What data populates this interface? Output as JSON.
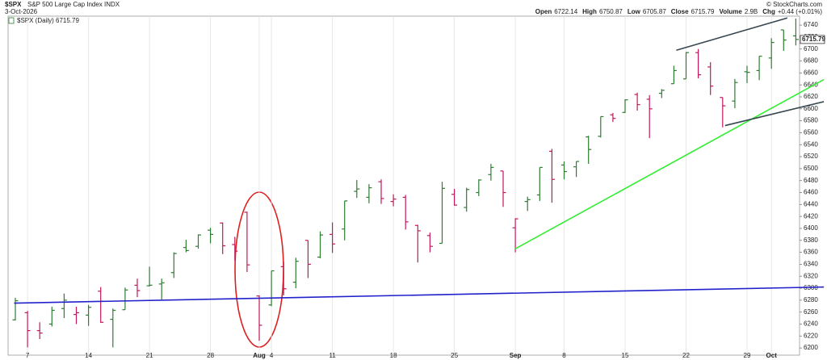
{
  "header": {
    "symbol": "$SPX",
    "name": "S&P 500 Large Cap Index INDX",
    "date": "3-Oct-2026",
    "brand": "© StockCharts.com",
    "quote": [
      {
        "label": "Open",
        "value": "6722.14"
      },
      {
        "label": "High",
        "value": "6750.87"
      },
      {
        "label": "Low",
        "value": "6705.87"
      },
      {
        "label": "Close",
        "value": "6715.79"
      },
      {
        "label": "Volume",
        "value": "2.9B"
      },
      {
        "label": "Chg",
        "value": "+0.44 (+0.01%)"
      }
    ],
    "legend": "$SPX (Daily) 6715.79",
    "last_price": "6715.79"
  },
  "chart_data": {
    "type": "ohlc",
    "categories": [
      null,
      "7",
      null,
      null,
      null,
      null,
      "14",
      null,
      null,
      null,
      null,
      "21",
      null,
      null,
      null,
      null,
      "28",
      null,
      null,
      null,
      "Aug",
      "4",
      null,
      null,
      null,
      null,
      "11",
      null,
      null,
      null,
      null,
      "18",
      null,
      null,
      null,
      null,
      "25",
      null,
      null,
      null,
      null,
      "Sep",
      null,
      null,
      null,
      "8",
      null,
      null,
      null,
      null,
      "15",
      null,
      null,
      null,
      null,
      "22",
      null,
      null,
      null,
      null,
      "29",
      null,
      "Oct",
      null,
      null
    ],
    "ohlc": [
      [
        6247,
        6284,
        6246,
        6279
      ],
      [
        6259,
        6262,
        6201,
        6229
      ],
      [
        6229,
        6243,
        6215,
        6225
      ],
      [
        6240,
        6269,
        6236,
        6263
      ],
      [
        6266,
        6291,
        6250,
        6280
      ],
      [
        6256,
        6269,
        6240,
        6259
      ],
      [
        6255,
        6272,
        6237,
        6268
      ],
      [
        6295,
        6302,
        6242,
        6243
      ],
      [
        6248,
        6266,
        6201,
        6263
      ],
      [
        6264,
        6301,
        6264,
        6297
      ],
      [
        6305,
        6316,
        6285,
        6296
      ],
      [
        6304,
        6336,
        6303,
        6305
      ],
      [
        6307,
        6316,
        6281,
        6309
      ],
      [
        6326,
        6360,
        6317,
        6358
      ],
      [
        6368,
        6381,
        6360,
        6363
      ],
      [
        6370,
        6390,
        6366,
        6389
      ],
      [
        6397,
        6401,
        6375,
        6390
      ],
      [
        6409,
        6410,
        6357,
        6371
      ],
      [
        6373,
        6386,
        6346,
        6362
      ],
      [
        6427,
        6428,
        6327,
        6339
      ],
      [
        6287,
        6288,
        6212,
        6238
      ],
      [
        6272,
        6329,
        6270,
        6329
      ],
      [
        6336,
        6344,
        6288,
        6299
      ],
      [
        6310,
        6351,
        6300,
        6345
      ],
      [
        6380,
        6380,
        6317,
        6340
      ],
      [
        6352,
        6395,
        6350,
        6389
      ],
      [
        6390,
        6410,
        6359,
        6374
      ],
      [
        6399,
        6446,
        6380,
        6446
      ],
      [
        6462,
        6481,
        6451,
        6466
      ],
      [
        6452,
        6474,
        6442,
        6468
      ],
      [
        6478,
        6482,
        6441,
        6450
      ],
      [
        6445,
        6457,
        6437,
        6449
      ],
      [
        6452,
        6456,
        6398,
        6411
      ],
      [
        6405,
        6406,
        6343,
        6396
      ],
      [
        6388,
        6393,
        6360,
        6370
      ],
      [
        6375,
        6478,
        6375,
        6467
      ],
      [
        6457,
        6466,
        6438,
        6439
      ],
      [
        6435,
        6468,
        6428,
        6465
      ],
      [
        6460,
        6482,
        6454,
        6481
      ],
      [
        6490,
        6508,
        6480,
        6502
      ],
      [
        6496,
        6496,
        6436,
        6460
      ],
      [
        6401,
        6417,
        6360,
        6416
      ],
      [
        6445,
        6453,
        6429,
        6448
      ],
      [
        6456,
        6502,
        6446,
        6502
      ],
      [
        6529,
        6533,
        6443,
        6482
      ],
      [
        6506,
        6512,
        6482,
        6495
      ],
      [
        6503,
        6512,
        6486,
        6512
      ],
      [
        6553,
        6555,
        6508,
        6532
      ],
      [
        6554,
        6587,
        6552,
        6587
      ],
      [
        6590,
        6593,
        6578,
        6584
      ],
      [
        6594,
        6616,
        6593,
        6615
      ],
      [
        6624,
        6627,
        6597,
        6607
      ],
      [
        6616,
        6623,
        6551,
        6600
      ],
      [
        6626,
        6633,
        6618,
        6631
      ],
      [
        6642,
        6672,
        6642,
        6664
      ],
      [
        6650,
        6695,
        6650,
        6694
      ],
      [
        6694,
        6700,
        6651,
        6657
      ],
      [
        6670,
        6678,
        6623,
        6638
      ],
      [
        6619,
        6619,
        6569,
        6605
      ],
      [
        6613,
        6650,
        6601,
        6644
      ],
      [
        6662,
        6672,
        6643,
        6661
      ],
      [
        6664,
        6688,
        6648,
        6688
      ],
      [
        6685,
        6718,
        6667,
        6711
      ],
      [
        6732,
        6732,
        6697,
        6715
      ],
      [
        6722,
        6751,
        6706,
        6716
      ]
    ],
    "up_color": "#2e7d32",
    "down_color": "#c2185b",
    "ylim": [
      6188,
      6755
    ],
    "yticks": [
      6200,
      6220,
      6240,
      6260,
      6280,
      6300,
      6320,
      6340,
      6360,
      6380,
      6400,
      6420,
      6440,
      6460,
      6480,
      6500,
      6520,
      6540,
      6560,
      6580,
      6600,
      6620,
      6640,
      6660,
      6680,
      6700,
      6720,
      6740
    ],
    "trendlines": [
      {
        "color": "#2222cc",
        "from": [
          -0.1,
          6275
        ],
        "to": [
          66.3,
          6302
        ]
      },
      {
        "color": "#33ee33",
        "from": [
          41,
          6366
        ],
        "to": [
          66.3,
          6649
        ]
      },
      {
        "color": "#37474f",
        "from": [
          54.2,
          6698
        ],
        "to": [
          63.3,
          6752
        ]
      },
      {
        "color": "#37474f",
        "from": [
          58.2,
          6572
        ],
        "to": [
          66.3,
          6612
        ]
      }
    ],
    "grid": true
  }
}
